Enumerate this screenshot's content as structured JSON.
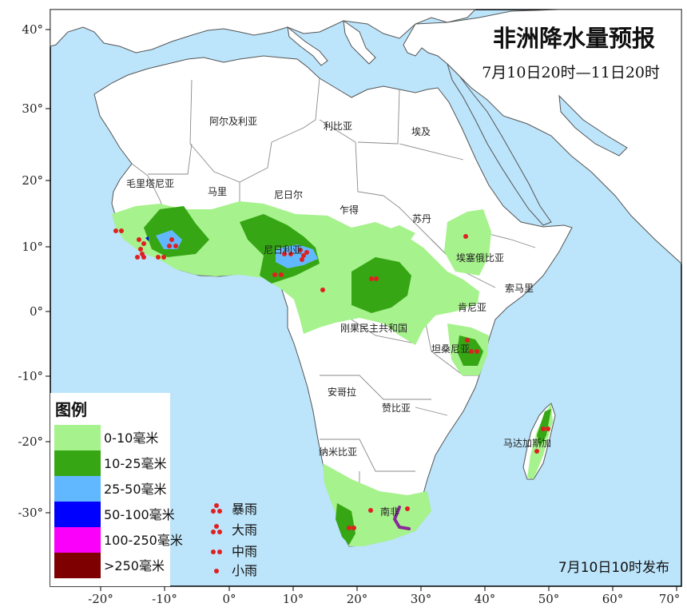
{
  "title": "非洲降水量预报",
  "subtitle": "7月10日20时—11日20时",
  "release": "7月10日10时发布",
  "lat_labels": [
    "40°",
    "30°",
    "20°",
    "10°",
    "0°",
    "-10°",
    "-20°",
    "-30°"
  ],
  "lon_labels": [
    "-20°",
    "-10°",
    "0°",
    "10°",
    "20°",
    "30°",
    "40°",
    "50°",
    "60°",
    "70°"
  ],
  "countries": {
    "algeria": "阿尔及利亚",
    "libya": "利比亚",
    "egypt": "埃及",
    "mauritania": "毛里塔尼亚",
    "mali": "马里",
    "niger": "尼日尔",
    "chad": "乍得",
    "sudan": "苏丹",
    "nigeria": "尼日利亚",
    "ethiopia": "埃塞俄比亚",
    "somalia": "索马里",
    "kenya": "肯尼亚",
    "drc": "刚果民主共和国",
    "tanzania": "坦桑尼亚",
    "angola": "安哥拉",
    "zambia": "赞比亚",
    "namibia": "纳米比亚",
    "madagascar": "马达加斯加",
    "south_africa": "南非"
  },
  "legend": {
    "title": "图例",
    "items": [
      {
        "label": "0-10毫米",
        "color": "#a6f28c"
      },
      {
        "label": "10-25毫米",
        "color": "#36a614"
      },
      {
        "label": "25-50毫米",
        "color": "#62b8ff"
      },
      {
        "label": "50-100毫米",
        "color": "#0000fe"
      },
      {
        "label": "100-250毫米",
        "color": "#fa00fa"
      },
      {
        "label": ">250毫米",
        "color": "#7f0000"
      }
    ],
    "symbols": [
      {
        "label": "暴雨",
        "icon": "rainstorm-dots"
      },
      {
        "label": "大雨",
        "icon": "heavy-rain-dots"
      },
      {
        "label": "中雨",
        "icon": "moderate-rain-dots"
      },
      {
        "label": "小雨",
        "icon": "light-rain-dot"
      }
    ]
  },
  "colors": {
    "ocean": "#bce4fa",
    "land": "#ffffff",
    "border": "#8a8a8a",
    "rain_dot": "#e02020"
  }
}
